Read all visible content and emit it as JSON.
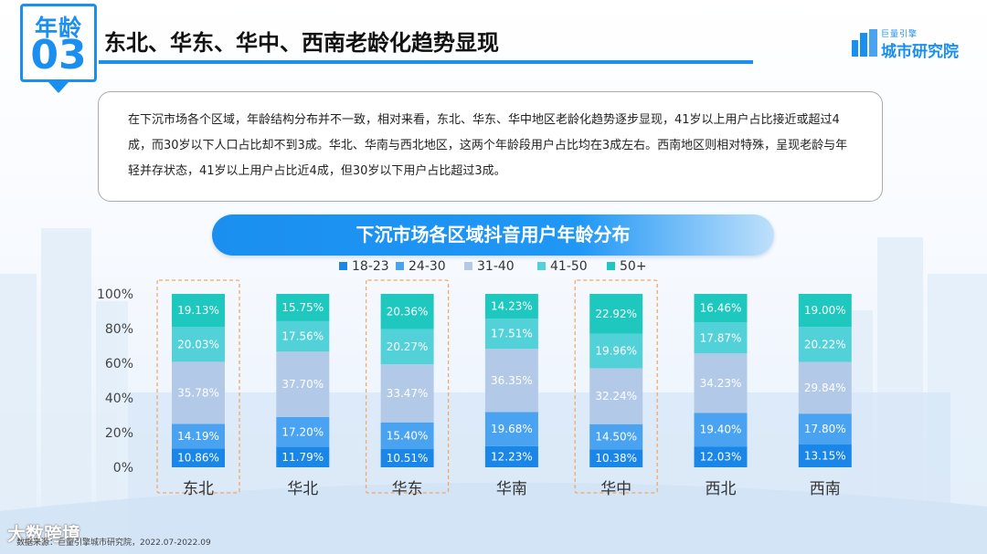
{
  "header": {
    "badge_top": "年龄",
    "badge_number": "03",
    "title": "东北、华东、华中、西南老龄化趋势显现"
  },
  "logo": {
    "small_text": "巨量引擎",
    "text": "城市研究院",
    "icon": "city-buildings-icon",
    "color": "#1a8ff0"
  },
  "summary": {
    "text": "在下沉市场各个区域，年龄结构分布并不一致，相对来看，东北、华东、华中地区老龄化趋势逐步显现，41岁以上用户占比接近或超过4成，而30岁以下人口占比却不到3成。华北、华南与西北地区，这两个年龄段用户占比均在3成左右。西南地区则相对特殊，呈现老龄与年轻并存状态，41岁以上用户占比近4成，但30岁以下用户占比超过3成。"
  },
  "footer": {
    "source": "数据来源：巨量引擎城市研究院，2022.07-2022.09",
    "watermark": "大数跨境"
  },
  "chart_data": {
    "type": "bar",
    "stacked": true,
    "title": "下沉市场各区域抖音用户年龄分布",
    "categories": [
      "东北",
      "华北",
      "华东",
      "华南",
      "华中",
      "西北",
      "西南"
    ],
    "highlighted_categories": [
      "东北",
      "华东",
      "华中"
    ],
    "series": [
      {
        "name": "18-23",
        "color": "#1a87e8",
        "values": [
          10.86,
          11.79,
          10.51,
          12.23,
          10.38,
          12.03,
          13.15
        ]
      },
      {
        "name": "24-30",
        "color": "#4aa3f0",
        "values": [
          14.19,
          17.2,
          15.4,
          19.68,
          14.5,
          19.4,
          17.8
        ]
      },
      {
        "name": "31-40",
        "color": "#b3c9e8",
        "values": [
          35.78,
          37.7,
          33.47,
          36.35,
          32.24,
          34.23,
          29.84
        ]
      },
      {
        "name": "41-50",
        "color": "#52d2d8",
        "values": [
          20.03,
          17.56,
          20.27,
          17.51,
          19.96,
          17.87,
          20.22
        ]
      },
      {
        "name": "50+",
        "color": "#1ec8bf",
        "values": [
          19.13,
          15.75,
          20.36,
          14.23,
          22.92,
          16.46,
          19.0
        ]
      }
    ],
    "yticks": [
      "0%",
      "20%",
      "40%",
      "60%",
      "80%",
      "100%"
    ],
    "ylim": [
      0,
      100
    ],
    "legend_position": "top",
    "grid": false
  }
}
